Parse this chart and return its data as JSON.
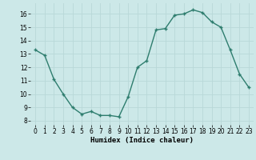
{
  "x": [
    0,
    1,
    2,
    3,
    4,
    5,
    6,
    7,
    8,
    9,
    10,
    11,
    12,
    13,
    14,
    15,
    16,
    17,
    18,
    19,
    20,
    21,
    22,
    23
  ],
  "y": [
    13.3,
    12.9,
    11.1,
    10.0,
    9.0,
    8.5,
    8.7,
    8.4,
    8.4,
    8.3,
    9.8,
    12.0,
    12.5,
    14.8,
    14.9,
    15.9,
    16.0,
    16.3,
    16.1,
    15.4,
    15.0,
    13.3,
    11.5,
    10.5
  ],
  "line_color": "#2e7d6e",
  "marker": "+",
  "marker_size": 3,
  "bg_color": "#cce8e8",
  "grid_color": "#b8d8d8",
  "xlabel": "Humidex (Indice chaleur)",
  "yticks": [
    8,
    9,
    10,
    11,
    12,
    13,
    14,
    15,
    16
  ],
  "xticks": [
    0,
    1,
    2,
    3,
    4,
    5,
    6,
    7,
    8,
    9,
    10,
    11,
    12,
    13,
    14,
    15,
    16,
    17,
    18,
    19,
    20,
    21,
    22,
    23
  ],
  "ylim": [
    7.7,
    16.8
  ],
  "xlim": [
    -0.5,
    23.5
  ]
}
